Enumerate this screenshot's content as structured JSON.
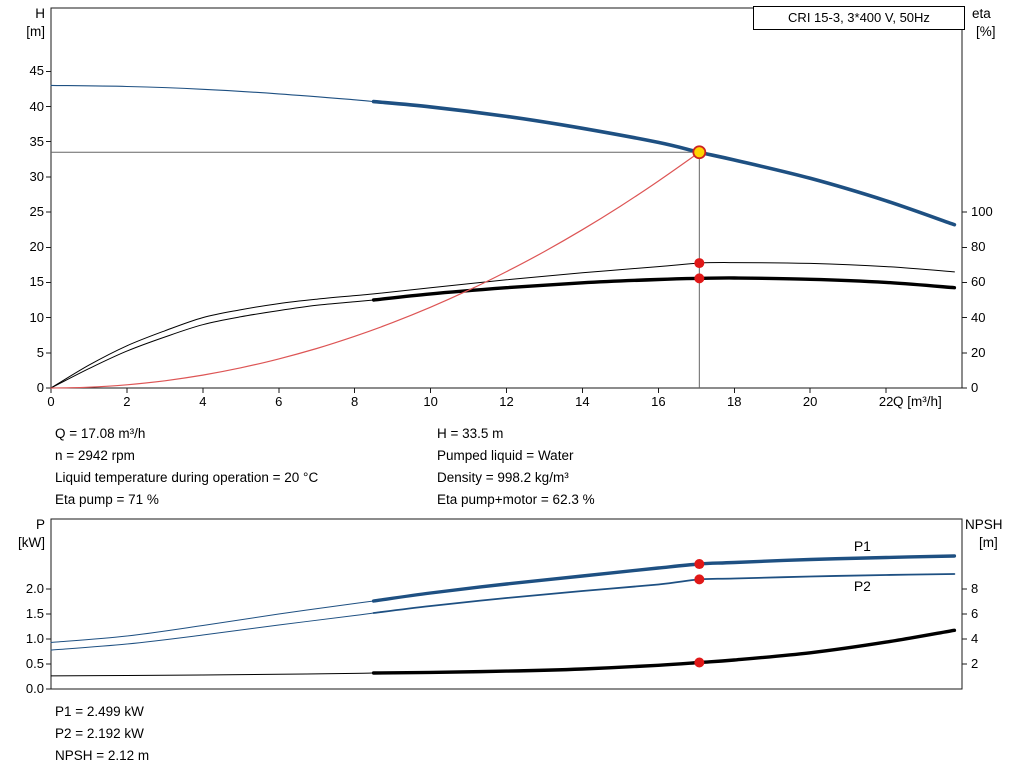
{
  "title_box": {
    "label": "CRI 15-3, 3*400 V, 50Hz"
  },
  "colors": {
    "curve_blue": "#1e5082",
    "curve_black": "#000000",
    "system_curve_red": "#dd5555",
    "dot_red": "#e01818",
    "duty_fill": "#ffd400",
    "duty_stroke": "#cc2222",
    "crosshair_gray": "#666666"
  },
  "info_top": {
    "left": [
      "Q = 17.08 m³/h",
      "n = 2942 rpm",
      "Liquid temperature during operation = 20 °C",
      "Eta pump = 71 %"
    ],
    "right": [
      "H = 33.5 m",
      "Pumped liquid = Water",
      "Density = 998.2 kg/m³",
      "Eta pump+motor = 62.3 %"
    ]
  },
  "info_bottom": [
    "P1 = 2.499 kW",
    "P2 = 2.192 kW",
    "NPSH = 2.12 m"
  ],
  "chart_data": [
    {
      "type": "line",
      "name": "hq-eta-chart",
      "title": "CRI 15-3, 3*400 V, 50Hz",
      "xlabel": "Q [m³/h]",
      "y_left_label_lines": [
        "H",
        "[m]"
      ],
      "y_right_label_lines": [
        "eta",
        "[%]"
      ],
      "xlim": [
        0,
        24
      ],
      "ylim_left": [
        0,
        54
      ],
      "right_to_left_factor": 0.25,
      "x_ticks": [
        {
          "v": 0,
          "label": "0"
        },
        {
          "v": 2,
          "label": "2"
        },
        {
          "v": 4,
          "label": "4"
        },
        {
          "v": 6,
          "label": "6"
        },
        {
          "v": 8,
          "label": "8"
        },
        {
          "v": 10,
          "label": "10"
        },
        {
          "v": 12,
          "label": "12"
        },
        {
          "v": 14,
          "label": "14"
        },
        {
          "v": 16,
          "label": "16"
        },
        {
          "v": 18,
          "label": "18"
        },
        {
          "v": 20,
          "label": "20"
        },
        {
          "v": 22,
          "label": "22"
        }
      ],
      "y_left_ticks": [
        {
          "v": 0,
          "label": "0"
        },
        {
          "v": 5,
          "label": "5"
        },
        {
          "v": 10,
          "label": "10"
        },
        {
          "v": 15,
          "label": "15"
        },
        {
          "v": 20,
          "label": "20"
        },
        {
          "v": 25,
          "label": "25"
        },
        {
          "v": 30,
          "label": "30"
        },
        {
          "v": 35,
          "label": "35"
        },
        {
          "v": 40,
          "label": "40"
        },
        {
          "v": 45,
          "label": "45"
        }
      ],
      "y_right_ticks": [
        {
          "v": 0,
          "label": "0"
        },
        {
          "v": 20,
          "label": "20"
        },
        {
          "v": 40,
          "label": "40"
        },
        {
          "v": 60,
          "label": "60"
        },
        {
          "v": 80,
          "label": "80"
        },
        {
          "v": 100,
          "label": "100"
        }
      ],
      "crosshair": {
        "q": 17.08,
        "h": 33.5
      },
      "duty_point": {
        "q": 17.08,
        "h": 33.5
      },
      "series": [
        {
          "name": "head-curve-thin",
          "axis": "left",
          "color": "#1e5082",
          "width": 1.1,
          "points": [
            [
              0,
              43
            ],
            [
              2,
              42.85
            ],
            [
              4,
              42.45
            ],
            [
              6,
              41.8
            ],
            [
              8,
              40.95
            ],
            [
              8.5,
              40.7
            ]
          ]
        },
        {
          "name": "head-curve",
          "axis": "left",
          "color": "#1e5082",
          "width": 3.6,
          "points": [
            [
              8.5,
              40.7
            ],
            [
              10,
              39.95
            ],
            [
              12,
              38.6
            ],
            [
              14,
              36.9
            ],
            [
              16,
              34.9
            ],
            [
              17.08,
              33.5
            ],
            [
              18,
              32.4
            ],
            [
              20,
              29.8
            ],
            [
              22,
              26.6
            ],
            [
              23.8,
              23.2
            ]
          ]
        },
        {
          "name": "eta-pump-curve",
          "axis": "right",
          "color": "#000000",
          "width": 1,
          "points": [
            [
              0,
              0
            ],
            [
              1,
              13
            ],
            [
              2,
              24
            ],
            [
              3,
              32.5
            ],
            [
              4,
              40
            ],
            [
              5,
              44.5
            ],
            [
              6,
              48
            ],
            [
              7,
              50.5
            ],
            [
              8,
              52.5
            ],
            [
              8.5,
              53.5
            ],
            [
              10,
              57
            ],
            [
              12,
              61.5
            ],
            [
              14,
              65.5
            ],
            [
              16,
              69
            ],
            [
              17.08,
              71
            ],
            [
              18,
              71.3
            ],
            [
              20,
              70.8
            ],
            [
              22,
              69
            ],
            [
              23.8,
              66
            ]
          ]
        },
        {
          "name": "eta-pump-motor-curve-thin",
          "axis": "right",
          "color": "#000000",
          "width": 1,
          "points": [
            [
              0,
              0
            ],
            [
              1,
              11
            ],
            [
              2,
              21
            ],
            [
              3,
              29
            ],
            [
              4,
              36
            ],
            [
              5,
              40.5
            ],
            [
              6,
              44
            ],
            [
              7,
              47
            ],
            [
              8,
              49
            ],
            [
              8.5,
              50
            ]
          ]
        },
        {
          "name": "eta-pump-motor-curve",
          "axis": "right",
          "color": "#000000",
          "width": 3.4,
          "points": [
            [
              8.5,
              50
            ],
            [
              10,
              53.5
            ],
            [
              12,
              57
            ],
            [
              14,
              59.8
            ],
            [
              16,
              61.7
            ],
            [
              17.08,
              62.3
            ],
            [
              18,
              62.5
            ],
            [
              20,
              61.8
            ],
            [
              22,
              60
            ],
            [
              23.8,
              57
            ]
          ]
        },
        {
          "name": "system-curve",
          "axis": "left",
          "color": "#dd5555",
          "width": 1.2,
          "points": [
            [
              0,
              0
            ],
            [
              1,
              0.11
            ],
            [
              2,
              0.46
            ],
            [
              3,
              1.03
            ],
            [
              4,
              1.84
            ],
            [
              5,
              2.87
            ],
            [
              6,
              4.13
            ],
            [
              7,
              5.62
            ],
            [
              8,
              7.35
            ],
            [
              9,
              9.3
            ],
            [
              10,
              11.48
            ],
            [
              11,
              13.9
            ],
            [
              12,
              16.54
            ],
            [
              13,
              19.4
            ],
            [
              14,
              22.5
            ],
            [
              15,
              25.84
            ],
            [
              16,
              29.4
            ],
            [
              17.08,
              33.5
            ]
          ]
        }
      ],
      "markers": [
        {
          "name": "eta-pump-dot",
          "q": 17.08,
          "v": 71,
          "axis": "right",
          "r": 5,
          "fill": "#e01818"
        },
        {
          "name": "eta-pump-motor-dot",
          "q": 17.08,
          "v": 62.3,
          "axis": "right",
          "r": 5,
          "fill": "#e01818"
        },
        {
          "name": "duty-point-marker",
          "q": 17.08,
          "v": 33.5,
          "axis": "left",
          "r": 6,
          "fill": "#ffd400",
          "stroke": "#cc2222"
        }
      ]
    },
    {
      "type": "line",
      "name": "power-npsh-chart",
      "xlabel": "",
      "y_left_label_lines": [
        "P",
        "[kW]"
      ],
      "y_right_label_lines": [
        "NPSH",
        "[m]"
      ],
      "xlim": [
        0,
        24
      ],
      "ylim_left": [
        0,
        3.4
      ],
      "right_to_left_factor": 0.25,
      "x_ticks": [],
      "y_left_ticks": [
        {
          "v": 0,
          "label": "0.0"
        },
        {
          "v": 0.5,
          "label": "0.5"
        },
        {
          "v": 1,
          "label": "1.0"
        },
        {
          "v": 1.5,
          "label": "1.5"
        },
        {
          "v": 2,
          "label": "2.0"
        }
      ],
      "y_right_ticks": [
        {
          "v": 2,
          "label": "2"
        },
        {
          "v": 4,
          "label": "4"
        },
        {
          "v": 6,
          "label": "6"
        },
        {
          "v": 8,
          "label": "8"
        }
      ],
      "curve_labels": [
        {
          "text": "P1",
          "q": 21.15,
          "v": 2.85
        },
        {
          "text": "P2",
          "q": 21.15,
          "v": 2.04
        }
      ],
      "series": [
        {
          "name": "p1-curve-thin",
          "axis": "left",
          "color": "#1e5082",
          "width": 1,
          "points": [
            [
              0,
              0.93
            ],
            [
              2,
              1.06
            ],
            [
              4,
              1.27
            ],
            [
              6,
              1.5
            ],
            [
              8,
              1.71
            ],
            [
              8.5,
              1.76
            ]
          ]
        },
        {
          "name": "p1-curve",
          "axis": "left",
          "color": "#1e5082",
          "width": 3.4,
          "points": [
            [
              8.5,
              1.76
            ],
            [
              10,
              1.92
            ],
            [
              12,
              2.1
            ],
            [
              14,
              2.26
            ],
            [
              16,
              2.42
            ],
            [
              17.08,
              2.499
            ],
            [
              18,
              2.53
            ],
            [
              20,
              2.59
            ],
            [
              22,
              2.63
            ],
            [
              23.8,
              2.66
            ]
          ]
        },
        {
          "name": "p2-curve-thin",
          "axis": "left",
          "color": "#1e5082",
          "width": 1,
          "points": [
            [
              0,
              0.78
            ],
            [
              2,
              0.9
            ],
            [
              4,
              1.08
            ],
            [
              6,
              1.28
            ],
            [
              8,
              1.47
            ],
            [
              8.5,
              1.52
            ]
          ]
        },
        {
          "name": "p2-curve",
          "axis": "left",
          "color": "#1e5082",
          "width": 1.8,
          "points": [
            [
              8.5,
              1.52
            ],
            [
              10,
              1.66
            ],
            [
              12,
              1.82
            ],
            [
              14,
              1.96
            ],
            [
              16,
              2.09
            ],
            [
              17.08,
              2.192
            ],
            [
              18,
              2.21
            ],
            [
              20,
              2.25
            ],
            [
              22,
              2.28
            ],
            [
              23.8,
              2.3
            ]
          ]
        },
        {
          "name": "npsh-curve-thin",
          "axis": "right",
          "color": "#000000",
          "width": 1,
          "points": [
            [
              0,
              1.05
            ],
            [
              2,
              1.08
            ],
            [
              4,
              1.12
            ],
            [
              6,
              1.18
            ],
            [
              8,
              1.25
            ],
            [
              8.5,
              1.28
            ]
          ]
        },
        {
          "name": "npsh-curve",
          "axis": "right",
          "color": "#000000",
          "width": 3.4,
          "points": [
            [
              8.5,
              1.28
            ],
            [
              10,
              1.33
            ],
            [
              12,
              1.43
            ],
            [
              14,
              1.6
            ],
            [
              16,
              1.9
            ],
            [
              17.08,
              2.12
            ],
            [
              18,
              2.32
            ],
            [
              20,
              2.9
            ],
            [
              22,
              3.75
            ],
            [
              23.8,
              4.7
            ]
          ]
        }
      ],
      "markers": [
        {
          "name": "p1-dot",
          "q": 17.08,
          "v": 2.499,
          "axis": "left",
          "r": 5,
          "fill": "#e01818"
        },
        {
          "name": "p2-dot",
          "q": 17.08,
          "v": 2.192,
          "axis": "left",
          "r": 5,
          "fill": "#e01818"
        },
        {
          "name": "npsh-dot",
          "q": 17.08,
          "v": 2.12,
          "axis": "right",
          "r": 5,
          "fill": "#e01818"
        }
      ]
    }
  ]
}
